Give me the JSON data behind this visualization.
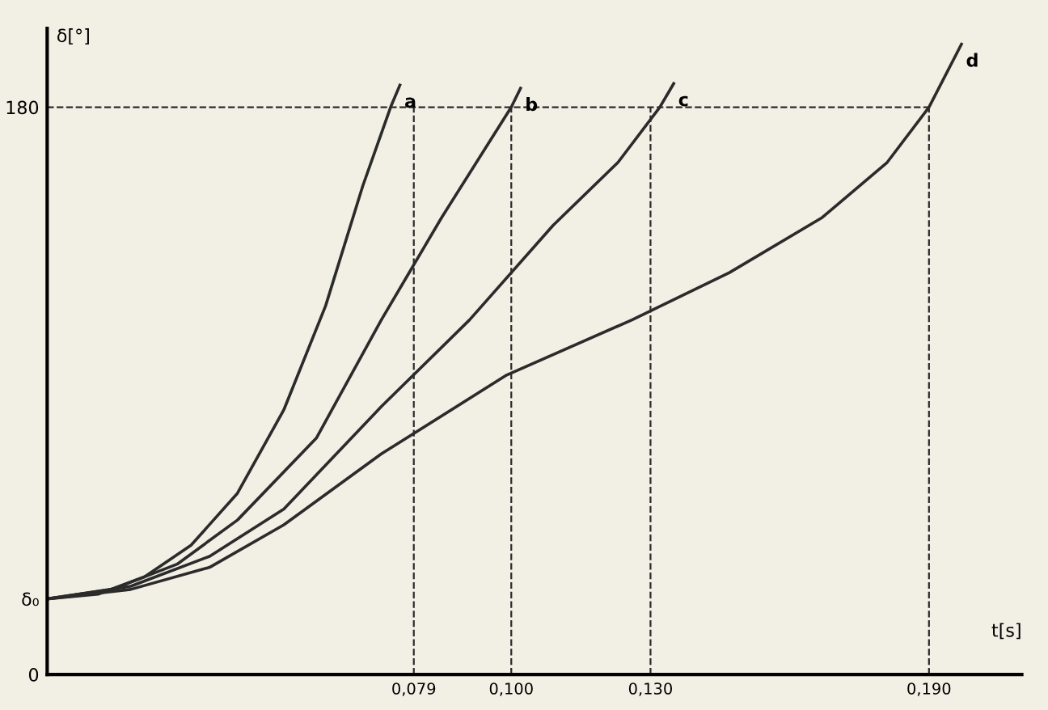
{
  "chart_data": {
    "type": "line",
    "xlabel": "t[s]",
    "ylabel": "δ[°]",
    "xlim": [
      0,
      0.21
    ],
    "ylim": [
      0,
      205
    ],
    "xticks": [
      {
        "value": 0.079,
        "label": "0,079"
      },
      {
        "value": 0.1,
        "label": "0,100"
      },
      {
        "value": 0.13,
        "label": "0,130"
      },
      {
        "value": 0.19,
        "label": "0,190"
      }
    ],
    "yticks": [
      0,
      {
        "value": 24,
        "label": "δ₀"
      },
      180
    ],
    "grid": false,
    "marker": "none",
    "line_style": "solid",
    "series": [
      {
        "color": "#2b2b2b",
        "x": [
          0,
          0.011,
          0.021,
          0.031,
          0.041,
          0.051,
          0.06,
          0.068,
          0.074,
          0.076
        ],
        "values": [
          24,
          25.5,
          31,
          41,
          57.5,
          84,
          117,
          155,
          180,
          187
        ]
      },
      {
        "color": "#2b2b2b",
        "x": [
          0,
          0.014,
          0.028,
          0.041,
          0.058,
          0.072,
          0.085,
          0.1,
          0.102
        ],
        "values": [
          24,
          27,
          35,
          49,
          75,
          112.5,
          145,
          180,
          186
        ]
      },
      {
        "color": "#2b2b2b",
        "x": [
          0,
          0.018,
          0.035,
          0.051,
          0.072,
          0.091,
          0.109,
          0.123,
          0.132,
          0.135
        ],
        "values": [
          24,
          28,
          37.5,
          52.5,
          85,
          112.5,
          142.5,
          162.5,
          180,
          187.5
        ]
      },
      {
        "color": "#2b2b2b",
        "x": [
          0,
          0.018,
          0.035,
          0.051,
          0.072,
          0.099,
          0.126,
          0.147,
          0.167,
          0.181,
          0.19,
          0.197
        ],
        "values": [
          24,
          27,
          34,
          47.5,
          70,
          95,
          112.5,
          127.5,
          145,
          162.5,
          180,
          200
        ]
      }
    ],
    "annotations": [
      {
        "text": "a",
        "x": 0.076,
        "y": 187
      },
      {
        "text": "b",
        "x": 0.102,
        "y": 186
      },
      {
        "text": "c",
        "x": 0.135,
        "y": 187.5
      },
      {
        "text": "d",
        "x": 0.197,
        "y": 200
      }
    ],
    "ref_lines": [
      {
        "axis": "y",
        "value": 180,
        "line_style": "dashed",
        "color": "#2b2b2b"
      },
      {
        "axis": "x",
        "value": 0.079,
        "line_style": "dashed",
        "color": "#2b2b2b"
      },
      {
        "axis": "x",
        "value": 0.1,
        "line_style": "dashed",
        "color": "#2b2b2b"
      },
      {
        "axis": "x",
        "value": 0.13,
        "line_style": "dashed",
        "color": "#2b2b2b"
      },
      {
        "axis": "x",
        "value": 0.19,
        "line_style": "dashed",
        "color": "#2b2b2b"
      }
    ]
  }
}
